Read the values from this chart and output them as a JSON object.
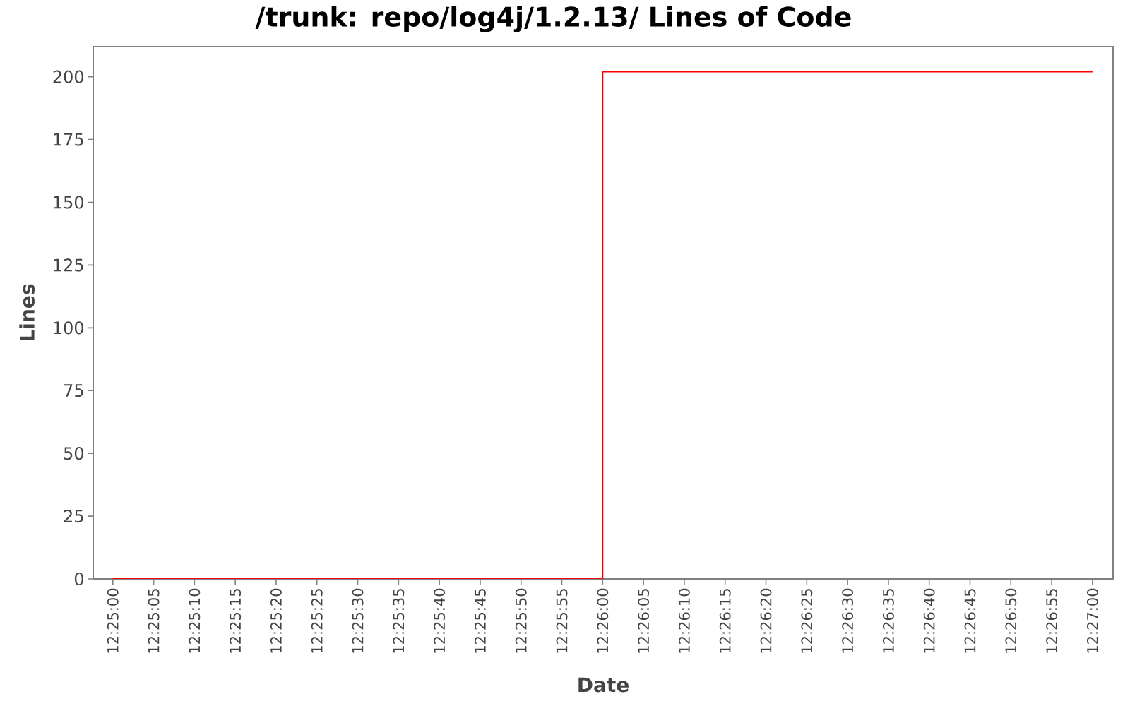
{
  "chart_data": {
    "type": "step",
    "title": "/trunk: repo/log4j/1.2.13/ Lines of Code",
    "xlabel": "Date",
    "ylabel": "Lines",
    "x": [
      12.416667,
      12.433333,
      12.45
    ],
    "values": [
      0,
      202,
      202
    ],
    "color": "#ff0000",
    "marker": "none",
    "line_style": "solid",
    "xlim": [
      12.416,
      12.4507
    ],
    "xticks": [
      {
        "value": 12.416667,
        "label": "12:25:00"
      },
      {
        "value": 12.418056,
        "label": "12:25:05"
      },
      {
        "value": 12.419444,
        "label": "12:25:10"
      },
      {
        "value": 12.420833,
        "label": "12:25:15"
      },
      {
        "value": 12.422222,
        "label": "12:25:20"
      },
      {
        "value": 12.423611,
        "label": "12:25:25"
      },
      {
        "value": 12.425,
        "label": "12:25:30"
      },
      {
        "value": 12.426389,
        "label": "12:25:35"
      },
      {
        "value": 12.427778,
        "label": "12:25:40"
      },
      {
        "value": 12.429167,
        "label": "12:25:45"
      },
      {
        "value": 12.430556,
        "label": "12:25:50"
      },
      {
        "value": 12.431944,
        "label": "12:25:55"
      },
      {
        "value": 12.433333,
        "label": "12:26:00"
      },
      {
        "value": 12.434722,
        "label": "12:26:05"
      },
      {
        "value": 12.436111,
        "label": "12:26:10"
      },
      {
        "value": 12.4375,
        "label": "12:26:15"
      },
      {
        "value": 12.438889,
        "label": "12:26:20"
      },
      {
        "value": 12.440278,
        "label": "12:26:25"
      },
      {
        "value": 12.441667,
        "label": "12:26:30"
      },
      {
        "value": 12.443056,
        "label": "12:26:35"
      },
      {
        "value": 12.444444,
        "label": "12:26:40"
      },
      {
        "value": 12.445833,
        "label": "12:26:45"
      },
      {
        "value": 12.447222,
        "label": "12:26:50"
      },
      {
        "value": 12.448611,
        "label": "12:26:55"
      },
      {
        "value": 12.45,
        "label": "12:27:00"
      }
    ],
    "ylim": [
      0,
      212
    ],
    "yticks": [
      0,
      25,
      50,
      75,
      100,
      125,
      150,
      175,
      200
    ]
  }
}
